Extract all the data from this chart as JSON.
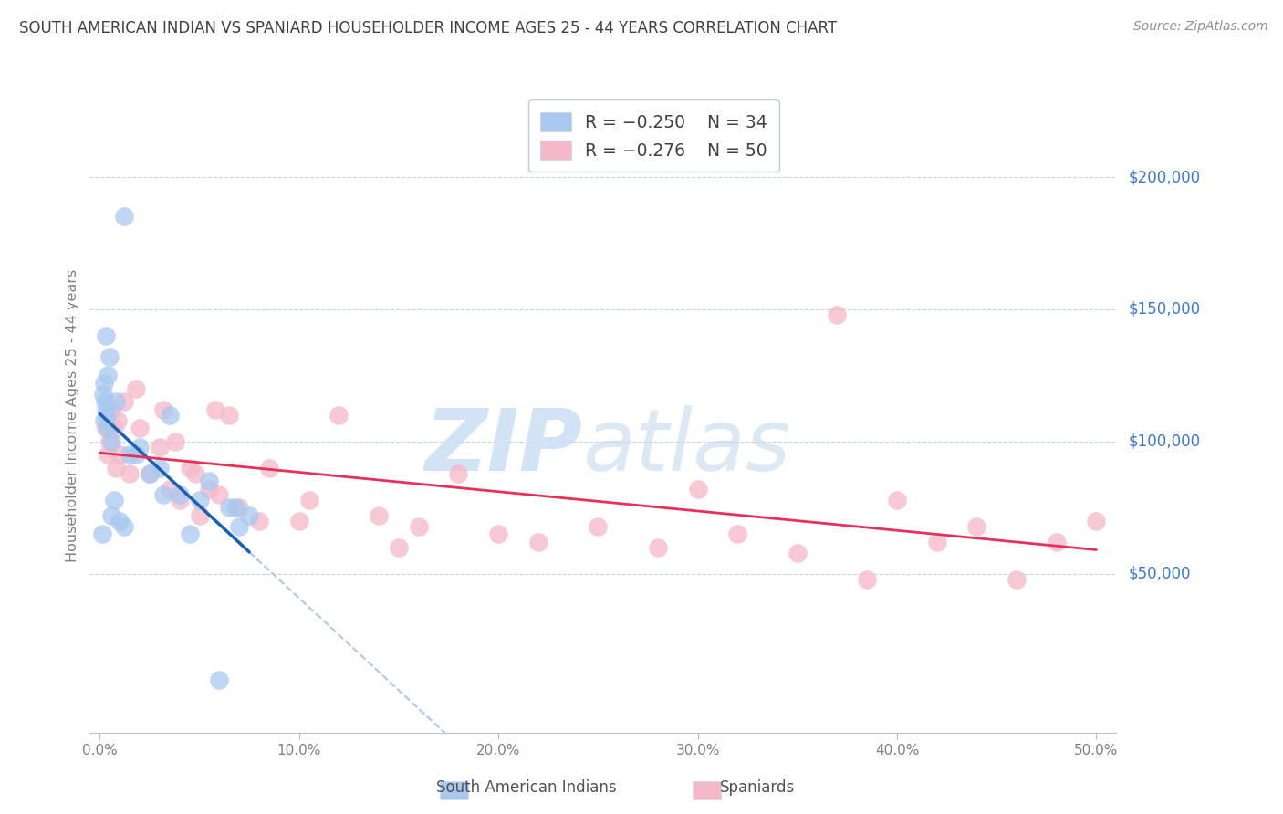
{
  "title": "SOUTH AMERICAN INDIAN VS SPANIARD HOUSEHOLDER INCOME AGES 25 - 44 YEARS CORRELATION CHART",
  "source": "Source: ZipAtlas.com",
  "ylabel": "Householder Income Ages 25 - 44 years",
  "xlim": [
    -0.5,
    51.0
  ],
  "ylim": [
    -10000,
    230000
  ],
  "ytick_vals": [
    50000,
    100000,
    150000,
    200000
  ],
  "ytick_labels": [
    "$50,000",
    "$100,000",
    "$150,000",
    "$200,000"
  ],
  "xticks": [
    0.0,
    10.0,
    20.0,
    30.0,
    40.0,
    50.0
  ],
  "xtick_labels": [
    "0.0%",
    "10.0%",
    "20.0%",
    "30.0%",
    "40.0%",
    "50.0%"
  ],
  "legend_label1": "South American Indians",
  "legend_label2": "Spaniards",
  "color_blue": "#a8c8f0",
  "color_pink": "#f5b8c8",
  "color_blue_line": "#1a5fb0",
  "color_pink_line": "#e8305a",
  "color_dashed": "#a8c8f0",
  "background_color": "#ffffff",
  "title_color": "#404040",
  "source_color": "#909090",
  "axis_label_color": "#808080",
  "ytick_color": "#3878d0",
  "xtick_color": "#808080",
  "grid_color": "#c8d4e4",
  "blue_x": [
    1.2,
    0.3,
    0.5,
    0.4,
    0.2,
    0.15,
    0.25,
    0.3,
    0.35,
    0.2,
    0.4,
    0.6,
    0.8,
    1.5,
    2.0,
    3.0,
    3.5,
    4.0,
    5.0,
    6.5,
    7.5,
    5.5,
    2.5,
    4.5,
    7.0,
    3.2,
    1.8,
    0.1,
    0.6,
    0.7,
    1.0,
    1.2,
    6.0,
    6.8
  ],
  "blue_y": [
    185000,
    140000,
    132000,
    125000,
    122000,
    118000,
    115000,
    112000,
    110000,
    108000,
    105000,
    100000,
    115000,
    95000,
    98000,
    90000,
    110000,
    80000,
    78000,
    75000,
    72000,
    85000,
    88000,
    65000,
    68000,
    80000,
    95000,
    65000,
    72000,
    78000,
    70000,
    68000,
    10000,
    75000
  ],
  "pink_x": [
    0.3,
    0.4,
    0.5,
    0.6,
    0.7,
    0.8,
    1.0,
    1.2,
    1.5,
    2.0,
    2.5,
    3.0,
    3.5,
    4.0,
    4.5,
    5.0,
    5.5,
    6.0,
    7.0,
    8.0,
    3.2,
    4.8,
    6.5,
    8.5,
    10.0,
    12.0,
    14.0,
    16.0,
    18.0,
    20.0,
    22.0,
    25.0,
    28.0,
    30.0,
    32.0,
    35.0,
    37.0,
    40.0,
    42.0,
    44.0,
    46.0,
    48.0,
    50.0,
    1.8,
    0.9,
    3.8,
    5.8,
    10.5,
    15.0,
    38.5
  ],
  "pink_y": [
    105000,
    95000,
    100000,
    112000,
    105000,
    90000,
    95000,
    115000,
    88000,
    105000,
    88000,
    98000,
    82000,
    78000,
    90000,
    72000,
    82000,
    80000,
    75000,
    70000,
    112000,
    88000,
    110000,
    90000,
    70000,
    110000,
    72000,
    68000,
    88000,
    65000,
    62000,
    68000,
    60000,
    82000,
    65000,
    58000,
    148000,
    78000,
    62000,
    68000,
    48000,
    62000,
    70000,
    120000,
    108000,
    100000,
    112000,
    78000,
    60000,
    48000
  ]
}
